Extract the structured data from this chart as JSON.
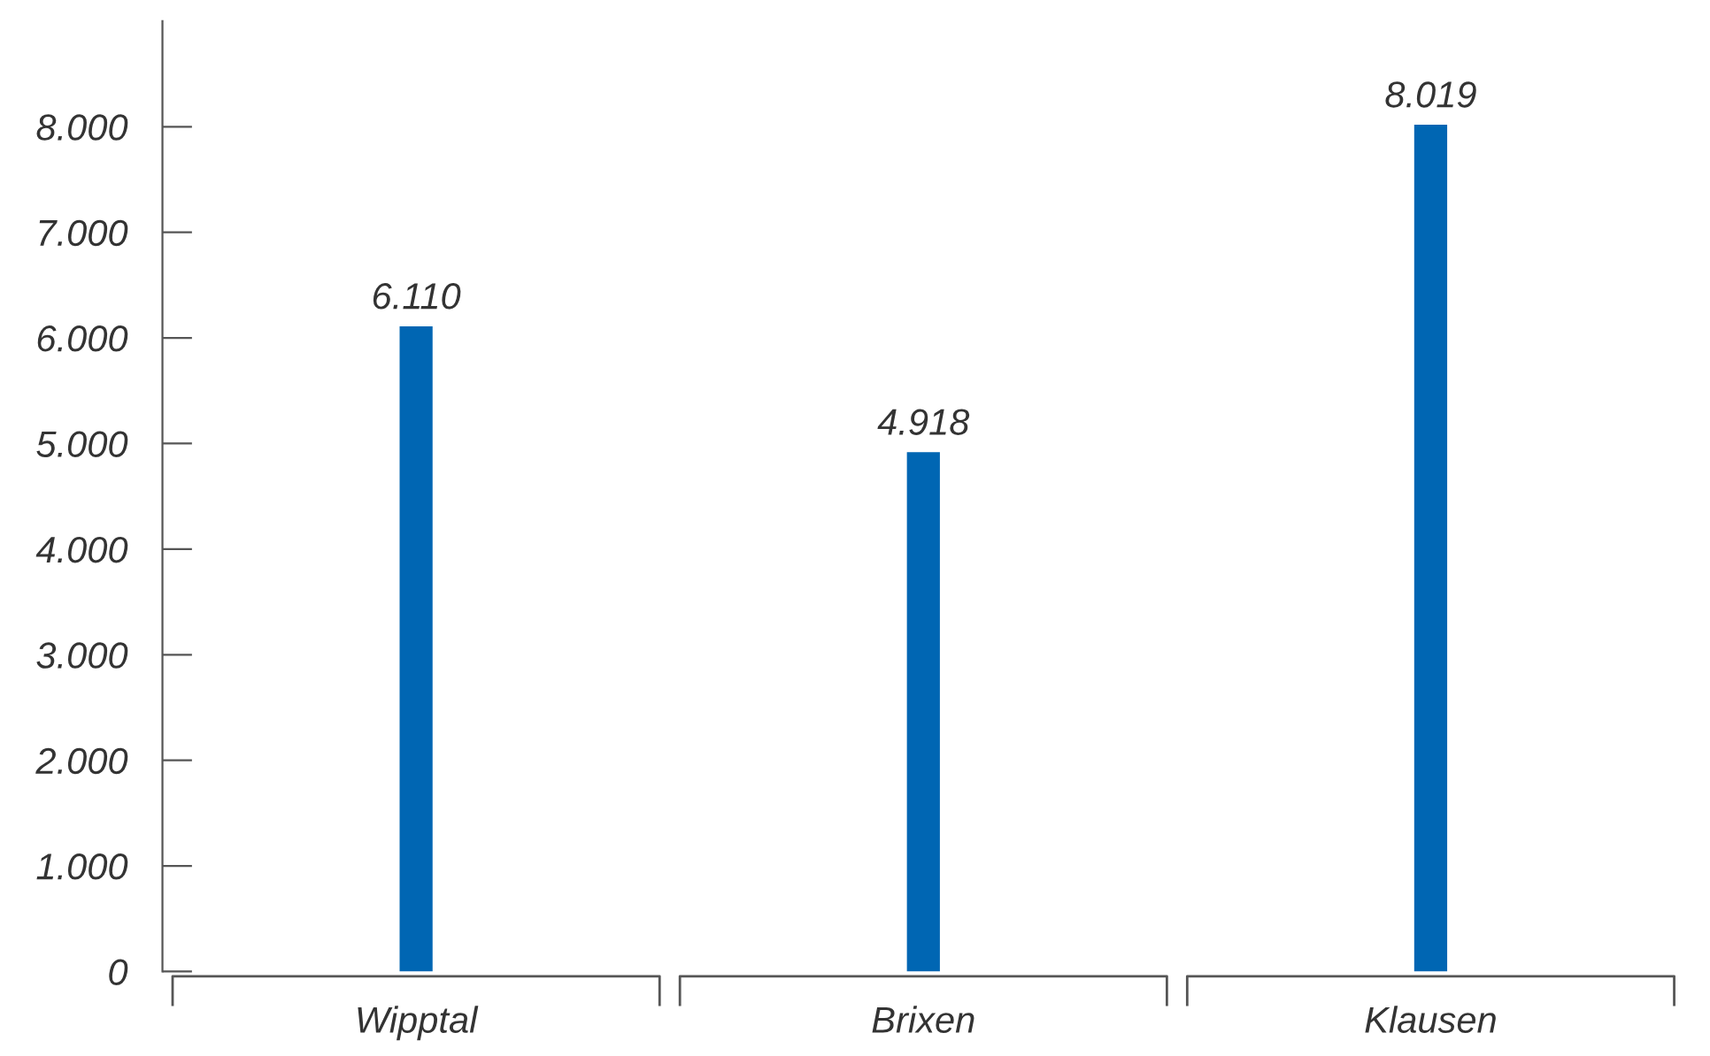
{
  "chart_data": {
    "type": "bar",
    "categories": [
      "Wipptal",
      "Brixen",
      "Klausen"
    ],
    "values": [
      6110,
      4918,
      8019
    ],
    "value_labels": [
      "6.110",
      "4.918",
      "8.019"
    ],
    "color": "#0066b3",
    "ylim": [
      0,
      9000
    ],
    "yticks": [
      {
        "value": 0,
        "label": "0"
      },
      {
        "value": 1000,
        "label": "1.000"
      },
      {
        "value": 2000,
        "label": "2.000"
      },
      {
        "value": 3000,
        "label": "3.000"
      },
      {
        "value": 4000,
        "label": "4.000"
      },
      {
        "value": 5000,
        "label": "5.000"
      },
      {
        "value": 6000,
        "label": "6.000"
      },
      {
        "value": 7000,
        "label": "7.000"
      },
      {
        "value": 8000,
        "label": "8.000"
      }
    ],
    "grid": false,
    "legend": false
  }
}
